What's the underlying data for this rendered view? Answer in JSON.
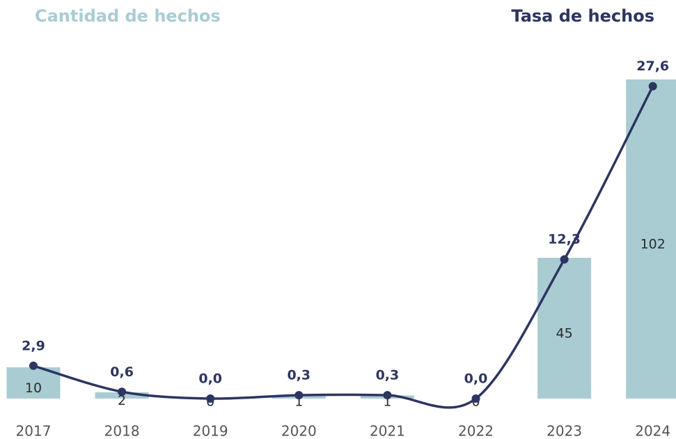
{
  "chart_data": {
    "type": "bar-line",
    "categories": [
      "2017",
      "2018",
      "2019",
      "2020",
      "2021",
      "2022",
      "2023",
      "2024"
    ],
    "series": [
      {
        "name": "Cantidad de hechos",
        "type": "bar",
        "color": "#a9ccd3",
        "values": [
          10,
          2,
          0,
          1,
          1,
          0,
          45,
          102
        ]
      },
      {
        "name": "Tasa de hechos",
        "type": "line",
        "axis": "y2",
        "color": "#2d3561",
        "values": [
          2.9,
          0.6,
          0.0,
          0.3,
          0.3,
          0.0,
          12.3,
          27.6
        ],
        "value_labels": [
          "2,9",
          "0,6",
          "0,0",
          "0,3",
          "0,3",
          "0,0",
          "12,3",
          "27,6"
        ]
      }
    ],
    "ylim": [
      0,
      102
    ],
    "y2lim": [
      0,
      28.2
    ]
  }
}
